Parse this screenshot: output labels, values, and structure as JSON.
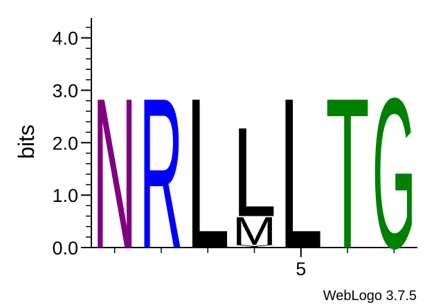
{
  "footer_text": "WebLogo 3.7.5",
  "chart_data": {
    "type": "sequence-logo",
    "ylabel": "bits",
    "ylim": [
      0,
      4.3
    ],
    "yticks": [
      "0.0",
      "1.0",
      "2.0",
      "3.0",
      "4.0"
    ],
    "xticks": [
      {
        "position": 5,
        "label": "5"
      }
    ],
    "color_scheme": {
      "N": "#800080",
      "R": "#0000ff",
      "L": "#000000",
      "M": "#000000",
      "Y": "#000000",
      "T": "#008000",
      "G": "#008000"
    },
    "positions": [
      {
        "position": 1,
        "letters": [
          {
            "char": "N",
            "height": 2.95
          }
        ]
      },
      {
        "position": 2,
        "letters": [
          {
            "char": "R",
            "height": 2.95
          }
        ]
      },
      {
        "position": 3,
        "letters": [
          {
            "char": "L",
            "height": 2.95
          }
        ]
      },
      {
        "position": 4,
        "letters": [
          {
            "char": "Y",
            "height": 0.05
          },
          {
            "char": "M",
            "height": 0.55
          },
          {
            "char": "L",
            "height": 1.75
          }
        ]
      },
      {
        "position": 5,
        "letters": [
          {
            "char": "L",
            "height": 2.95
          }
        ]
      },
      {
        "position": 6,
        "letters": [
          {
            "char": "T",
            "height": 2.95
          }
        ]
      },
      {
        "position": 7,
        "letters": [
          {
            "char": "G",
            "height": 2.95
          }
        ]
      }
    ]
  }
}
